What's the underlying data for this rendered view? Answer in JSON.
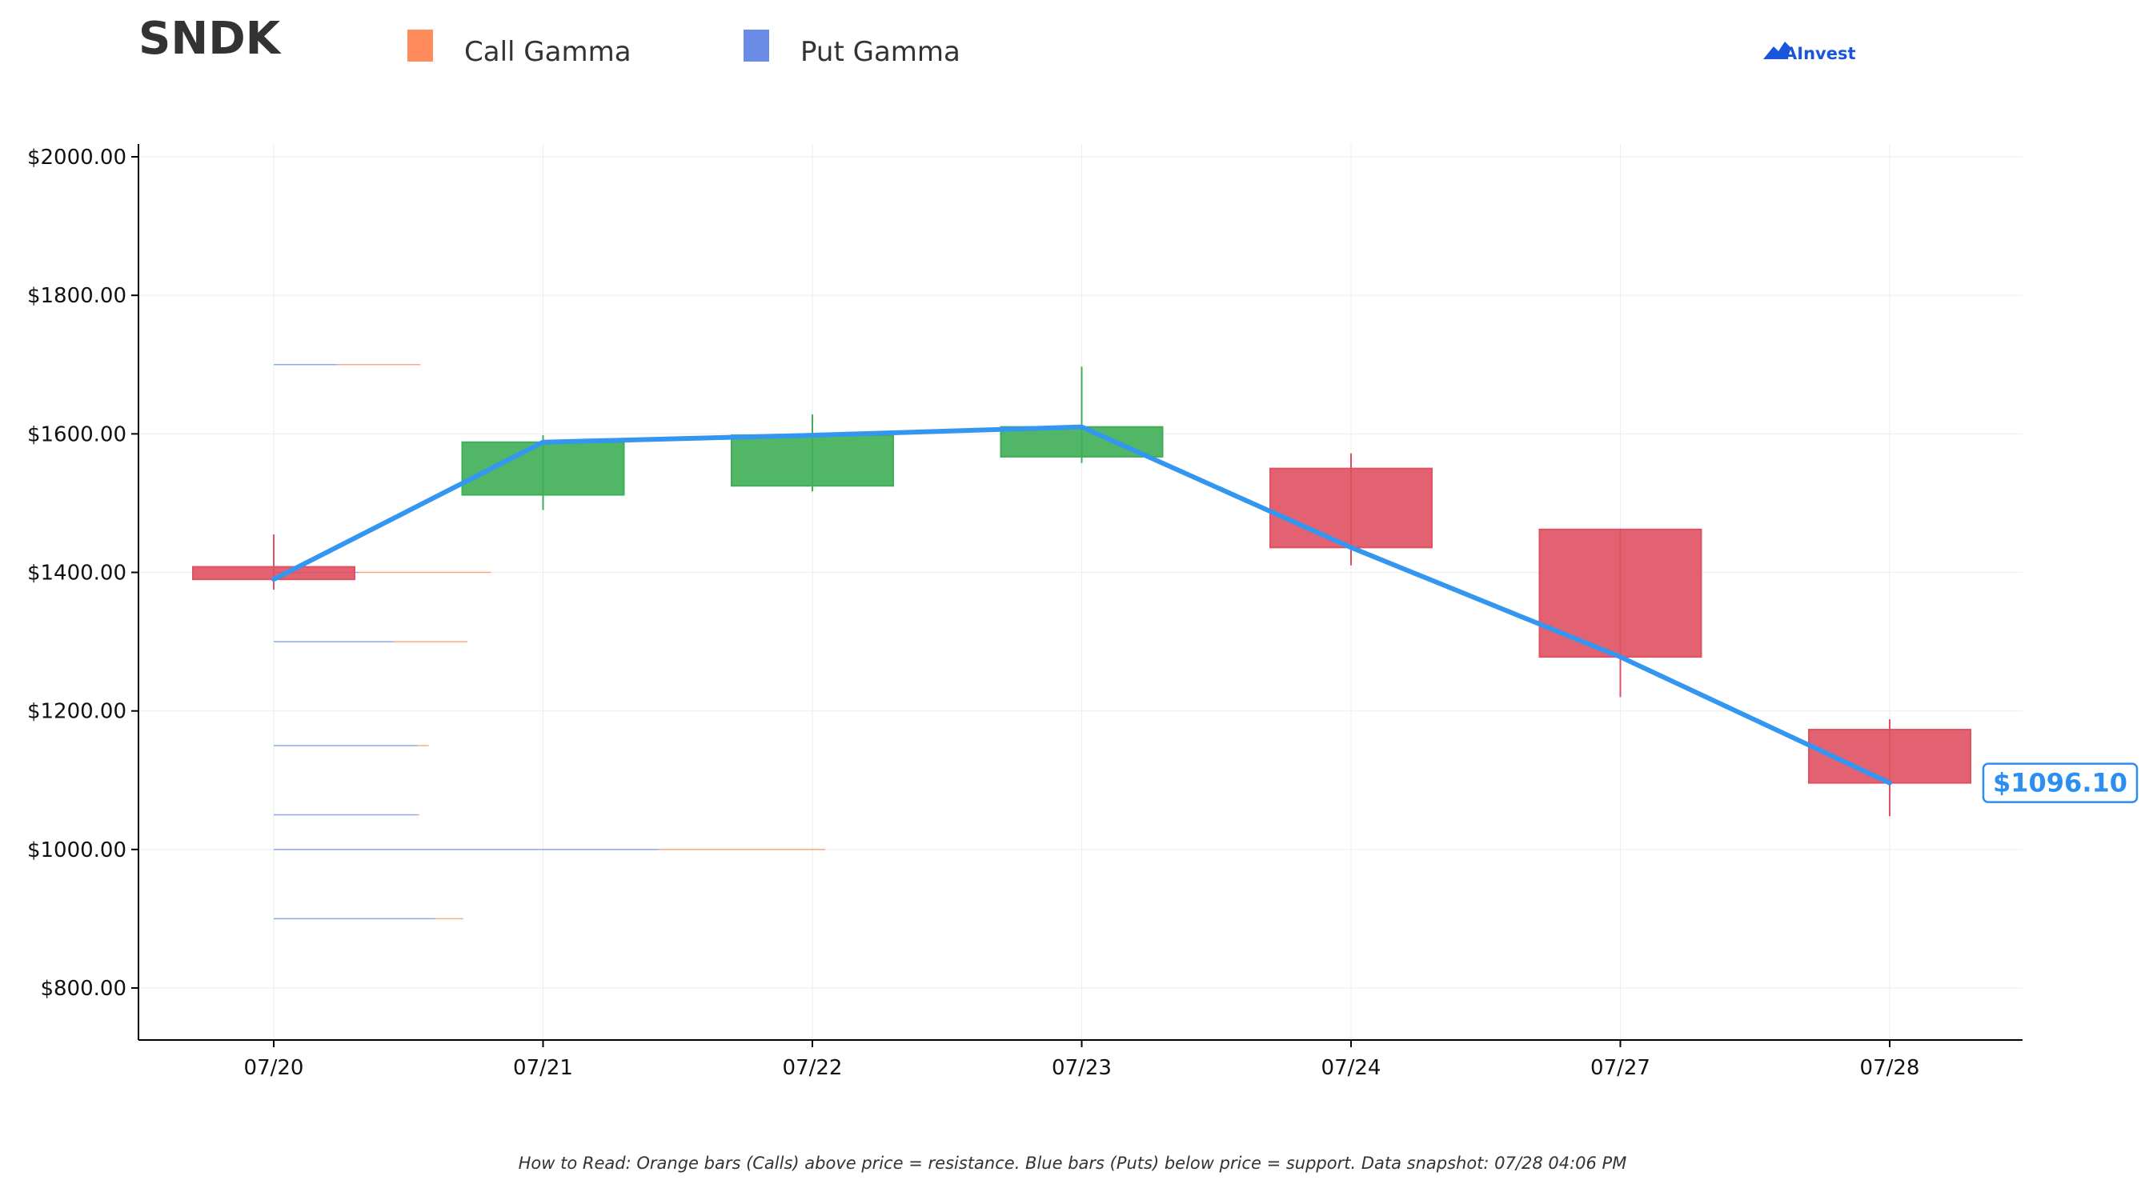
{
  "header": {
    "ticker": "SNDK",
    "brand": "AInvest"
  },
  "legend": [
    {
      "label": "Call Gamma",
      "color": "#ff8c5a"
    },
    {
      "label": "Put Gamma",
      "color": "#6a8be6"
    }
  ],
  "footer": {
    "note": "How to Read: Orange bars (Calls) above price = resistance. Blue bars (Puts) below price = support. Data snapshot: 07/28 04:06 PM"
  },
  "colors": {
    "up": "#3fae57",
    "down": "#e05162",
    "price_line": "#3396f0",
    "call": "#ff8c5a",
    "put": "#6a8be6",
    "grid": "#eeeeee"
  },
  "chart_data": {
    "type": "candlestick",
    "categories": [
      "07/20",
      "07/21",
      "07/22",
      "07/23",
      "07/24",
      "07/27",
      "07/28"
    ],
    "ylim": [
      730,
      2020
    ],
    "yticks": [
      800,
      1000,
      1200,
      1400,
      1600,
      1800,
      2000
    ],
    "ytick_labels": [
      "$800.00",
      "$1000.00",
      "$1200.00",
      "$1400.00",
      "$1600.00",
      "$1800.00",
      "$2000.00"
    ],
    "grid": true,
    "candles": [
      {
        "date": "07/20",
        "open": 1408,
        "high": 1455,
        "low": 1375,
        "close": 1390
      },
      {
        "date": "07/21",
        "open": 1512,
        "high": 1598,
        "low": 1490,
        "close": 1588
      },
      {
        "date": "07/22",
        "open": 1525,
        "high": 1628,
        "low": 1517,
        "close": 1598
      },
      {
        "date": "07/23",
        "open": 1567,
        "high": 1697,
        "low": 1558,
        "close": 1610
      },
      {
        "date": "07/24",
        "open": 1550,
        "high": 1572,
        "low": 1410,
        "close": 1436
      },
      {
        "date": "07/27",
        "open": 1462,
        "high": 1462,
        "low": 1220,
        "close": 1278
      },
      {
        "date": "07/28",
        "open": 1173,
        "high": 1188,
        "low": 1048,
        "close": 1096.1
      }
    ],
    "price_line": [
      1390,
      1588,
      1598,
      1610,
      1436,
      1278,
      1096.1
    ],
    "last_price_label": "$1096.10",
    "gamma_levels": [
      {
        "strike": 1700,
        "put": 0.61,
        "call": 0.8
      },
      {
        "strike": 1400,
        "put": 0.82,
        "call": 1.27
      },
      {
        "strike": 1300,
        "put": 1.15,
        "call": 0.71
      },
      {
        "strike": 1150,
        "put": 1.38,
        "call": 0.11
      },
      {
        "strike": 1050,
        "put": 1.38,
        "call": 0.02
      },
      {
        "strike": 1000,
        "put": 3.7,
        "call": 1.6
      },
      {
        "strike": 900,
        "put": 1.55,
        "call": 0.27
      }
    ]
  }
}
